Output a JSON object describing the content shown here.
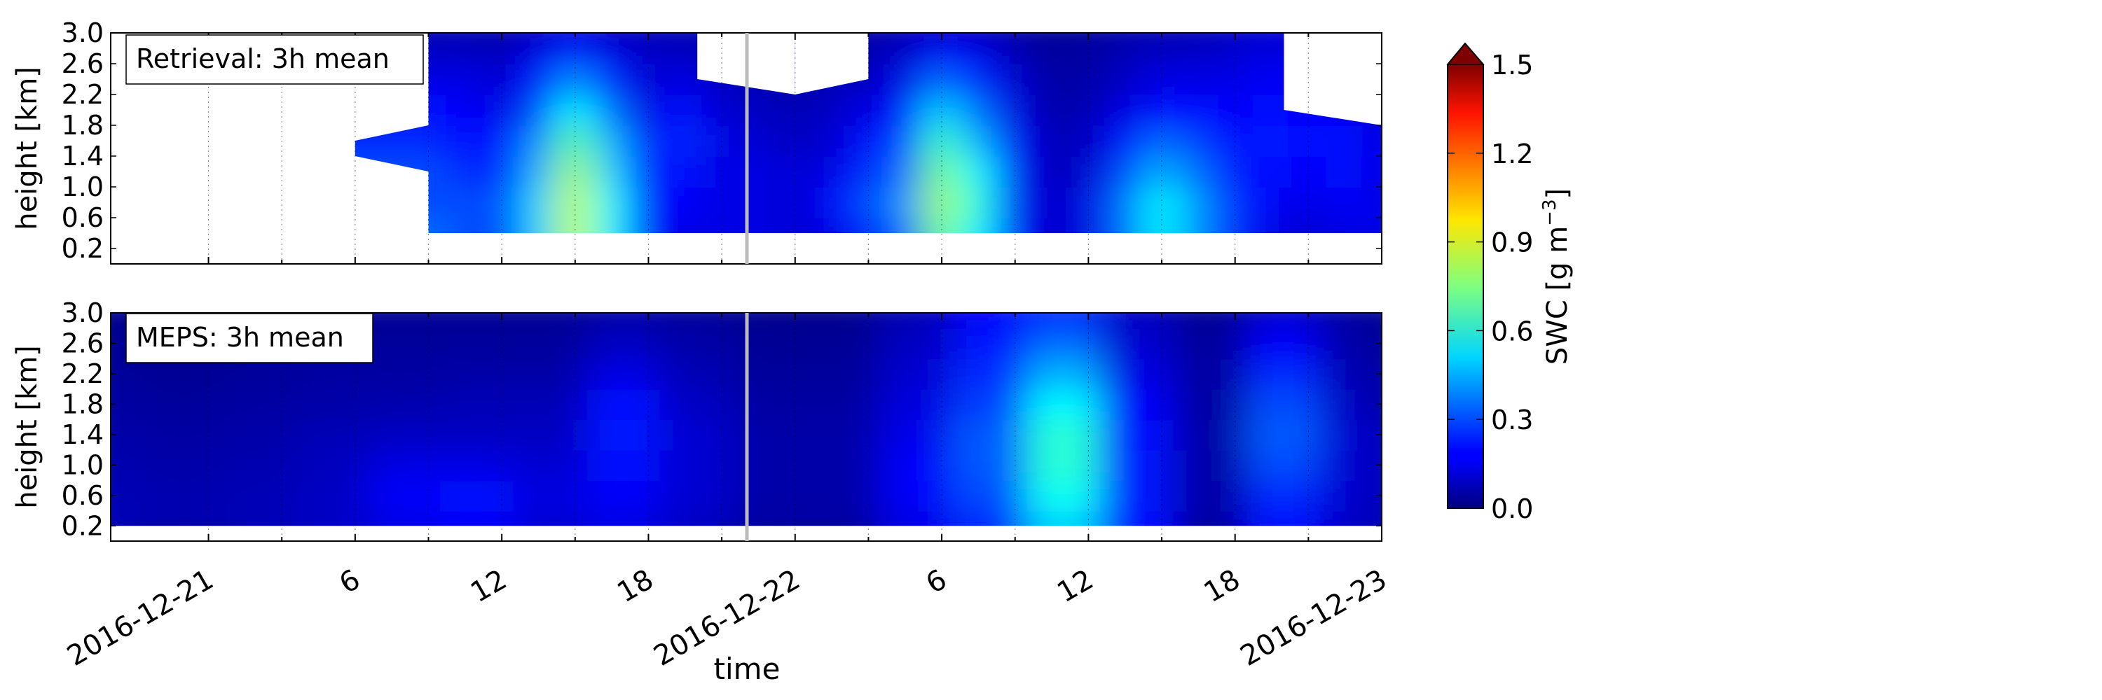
{
  "chart_data": [
    {
      "type": "heatmap",
      "title": "Retrieval: 3h mean",
      "xlabel": "",
      "ylabel": "height [km]",
      "xlim": [
        "2016-12-20 20:00",
        "2016-12-23 00:00"
      ],
      "ylim": [
        0.0,
        3.0
      ],
      "yticks": [
        0.2,
        0.6,
        1.0,
        1.4,
        1.8,
        2.2,
        2.6,
        3.0
      ],
      "ytick_labels": [
        "0.2",
        "0.6",
        "1.0",
        "1.4",
        "1.8",
        "2.2",
        "2.6",
        "3.0"
      ],
      "grid": true,
      "x_hours": [
        9,
        10.5,
        12,
        13.5,
        15,
        16.5,
        18,
        19.5,
        21,
        22.5,
        24,
        25.5,
        27,
        28.5,
        30,
        31.5,
        33,
        34.5,
        36,
        37.5,
        39,
        40.5,
        42,
        43.5,
        45,
        46.5,
        48
      ],
      "y_km": [
        0.4,
        0.8,
        1.2,
        1.6,
        2.0,
        2.4,
        2.8,
        3.0
      ],
      "swc": [
        [
          0.35,
          0.3,
          0.3,
          0.25,
          0.2,
          0.15,
          0.1,
          0.08
        ],
        [
          0.3,
          0.3,
          0.25,
          0.2,
          0.18,
          0.15,
          0.1,
          0.08
        ],
        [
          0.3,
          0.3,
          0.25,
          0.2,
          0.15,
          0.12,
          0.08,
          0.06
        ],
        [
          0.5,
          0.5,
          0.45,
          0.4,
          0.3,
          0.22,
          0.15,
          0.1
        ],
        [
          0.85,
          0.85,
          0.8,
          0.7,
          0.55,
          0.4,
          0.25,
          0.15
        ],
        [
          0.55,
          0.55,
          0.5,
          0.45,
          0.35,
          0.25,
          0.15,
          0.1
        ],
        [
          0.2,
          0.2,
          0.2,
          0.18,
          0.15,
          0.12,
          0.1,
          0.08
        ],
        [
          0.15,
          0.18,
          0.22,
          0.25,
          0.2,
          0.15,
          0.1,
          0.08
        ],
        [
          0.15,
          0.15,
          0.15,
          0.15,
          0.12,
          0.1,
          0.08,
          0.06
        ],
        [
          0.15,
          0.15,
          0.15,
          0.12,
          0.1,
          0.08,
          0.06,
          0.05
        ],
        [
          0.12,
          0.12,
          0.12,
          0.1,
          0.08,
          0.06,
          0.05,
          0.04
        ],
        [
          0.15,
          0.18,
          0.15,
          0.12,
          0.1,
          0.08,
          0.06,
          0.05
        ],
        [
          0.25,
          0.3,
          0.25,
          0.2,
          0.15,
          0.1,
          0.08,
          0.06
        ],
        [
          0.35,
          0.4,
          0.35,
          0.3,
          0.22,
          0.15,
          0.1,
          0.07
        ],
        [
          0.75,
          0.8,
          0.75,
          0.65,
          0.5,
          0.35,
          0.2,
          0.12
        ],
        [
          0.55,
          0.6,
          0.55,
          0.45,
          0.35,
          0.25,
          0.15,
          0.1
        ],
        [
          0.2,
          0.22,
          0.2,
          0.18,
          0.15,
          0.12,
          0.08,
          0.06
        ],
        [
          0.1,
          0.1,
          0.08,
          0.08,
          0.06,
          0.05,
          0.04,
          0.03
        ],
        [
          0.15,
          0.15,
          0.12,
          0.1,
          0.08,
          0.06,
          0.05,
          0.04
        ],
        [
          0.35,
          0.35,
          0.3,
          0.22,
          0.15,
          0.1,
          0.08,
          0.06
        ],
        [
          0.55,
          0.55,
          0.45,
          0.35,
          0.22,
          0.15,
          0.1,
          0.08
        ],
        [
          0.4,
          0.4,
          0.35,
          0.28,
          0.2,
          0.15,
          0.1,
          0.08
        ],
        [
          0.25,
          0.25,
          0.22,
          0.2,
          0.18,
          0.15,
          0.12,
          0.1
        ],
        [
          0.15,
          0.18,
          0.2,
          0.22,
          0.2,
          0.18,
          0.15,
          0.12
        ],
        [
          0.12,
          0.15,
          0.18,
          0.2,
          0.18,
          0.15,
          0.12,
          0.1
        ],
        [
          0.15,
          0.18,
          0.2,
          0.2,
          0.18,
          0.15,
          0.12,
          0.1
        ],
        [
          0.15,
          0.15,
          0.15,
          0.15,
          0.12,
          0.1,
          0.08,
          0.06
        ]
      ],
      "missing_regions": [
        [
          [
            -4,
            0
          ],
          [
            48,
            0
          ],
          [
            48,
            0.4
          ],
          [
            -4,
            0.4
          ]
        ],
        [
          [
            -4,
            0.4
          ],
          [
            9,
            0.4
          ],
          [
            9,
            1.2
          ],
          [
            6,
            1.4
          ],
          [
            6,
            1.6
          ],
          [
            9,
            1.8
          ],
          [
            9,
            3.0
          ],
          [
            -4,
            3.0
          ]
        ],
        [
          [
            20,
            3.0
          ],
          [
            20,
            2.4
          ],
          [
            24,
            2.2
          ],
          [
            24,
            3.0
          ]
        ],
        [
          [
            24,
            2.2
          ],
          [
            24,
            3.0
          ],
          [
            27,
            3.0
          ],
          [
            27,
            2.4
          ]
        ],
        [
          [
            44,
            3.0
          ],
          [
            44,
            2.0
          ],
          [
            48,
            1.8
          ],
          [
            48,
            3.0
          ]
        ]
      ]
    },
    {
      "type": "heatmap",
      "title": "MEPS: 3h mean",
      "xlabel": "time",
      "ylabel": "height [km]",
      "xlim": [
        "2016-12-20 20:00",
        "2016-12-23 00:00"
      ],
      "ylim": [
        0.0,
        3.0
      ],
      "yticks": [
        0.2,
        0.6,
        1.0,
        1.4,
        1.8,
        2.2,
        2.6,
        3.0
      ],
      "ytick_labels": [
        "0.2",
        "0.6",
        "1.0",
        "1.4",
        "1.8",
        "2.2",
        "2.6",
        "3.0"
      ],
      "xticks_hours": [
        0,
        6,
        12,
        18,
        24,
        30,
        36,
        42,
        48
      ],
      "xtick_labels": [
        "2016-12-21",
        "6",
        "12",
        "18",
        "2016-12-22",
        "6",
        "12",
        "18",
        "2016-12-23"
      ],
      "grid": true,
      "x_hours": [
        -4,
        -1,
        2,
        5,
        8,
        11,
        14,
        17,
        20,
        23,
        26,
        29,
        32,
        35,
        38,
        41,
        44,
        47,
        48
      ],
      "y_km": [
        0.2,
        0.6,
        1.0,
        1.4,
        1.8,
        2.2,
        2.6,
        3.0
      ],
      "swc": [
        [
          0.08,
          0.08,
          0.07,
          0.06,
          0.05,
          0.04,
          0.03,
          0.02
        ],
        [
          0.07,
          0.07,
          0.06,
          0.05,
          0.04,
          0.03,
          0.02,
          0.02
        ],
        [
          0.08,
          0.08,
          0.07,
          0.06,
          0.05,
          0.04,
          0.03,
          0.02
        ],
        [
          0.1,
          0.1,
          0.09,
          0.08,
          0.06,
          0.05,
          0.04,
          0.03
        ],
        [
          0.15,
          0.18,
          0.15,
          0.1,
          0.07,
          0.05,
          0.04,
          0.03
        ],
        [
          0.18,
          0.2,
          0.15,
          0.1,
          0.08,
          0.06,
          0.04,
          0.03
        ],
        [
          0.12,
          0.14,
          0.12,
          0.1,
          0.08,
          0.06,
          0.04,
          0.03
        ],
        [
          0.15,
          0.18,
          0.2,
          0.22,
          0.2,
          0.15,
          0.1,
          0.06
        ],
        [
          0.1,
          0.12,
          0.12,
          0.12,
          0.1,
          0.08,
          0.06,
          0.04
        ],
        [
          0.05,
          0.06,
          0.06,
          0.06,
          0.05,
          0.04,
          0.03,
          0.02
        ],
        [
          0.05,
          0.06,
          0.06,
          0.06,
          0.05,
          0.04,
          0.03,
          0.02
        ],
        [
          0.15,
          0.18,
          0.18,
          0.16,
          0.14,
          0.12,
          0.1,
          0.08
        ],
        [
          0.25,
          0.3,
          0.32,
          0.32,
          0.28,
          0.25,
          0.22,
          0.18
        ],
        [
          0.5,
          0.58,
          0.62,
          0.62,
          0.55,
          0.45,
          0.35,
          0.25
        ],
        [
          0.2,
          0.22,
          0.22,
          0.2,
          0.18,
          0.15,
          0.12,
          0.1
        ],
        [
          0.05,
          0.06,
          0.06,
          0.06,
          0.05,
          0.05,
          0.04,
          0.03
        ],
        [
          0.2,
          0.25,
          0.3,
          0.32,
          0.3,
          0.25,
          0.18,
          0.12
        ],
        [
          0.1,
          0.12,
          0.12,
          0.12,
          0.1,
          0.08,
          0.06,
          0.05
        ],
        [
          0.08,
          0.08,
          0.08,
          0.08,
          0.06,
          0.05,
          0.04,
          0.03
        ]
      ],
      "missing_regions": [
        [
          [
            -4,
            0
          ],
          [
            48,
            0
          ],
          [
            48,
            0.2
          ],
          [
            -4,
            0.2
          ]
        ]
      ]
    }
  ],
  "colorbar": {
    "label": "SWC [g m",
    "label_exponent": "−3",
    "label_close": "]",
    "vmin": 0.0,
    "vmax": 1.5,
    "ticks": [
      0.0,
      0.3,
      0.6,
      0.9,
      1.2,
      1.5
    ],
    "tick_labels": [
      "0.0",
      "0.3",
      "0.6",
      "0.9",
      "1.2",
      "1.5"
    ],
    "colormap": "jet",
    "extend": "max"
  }
}
